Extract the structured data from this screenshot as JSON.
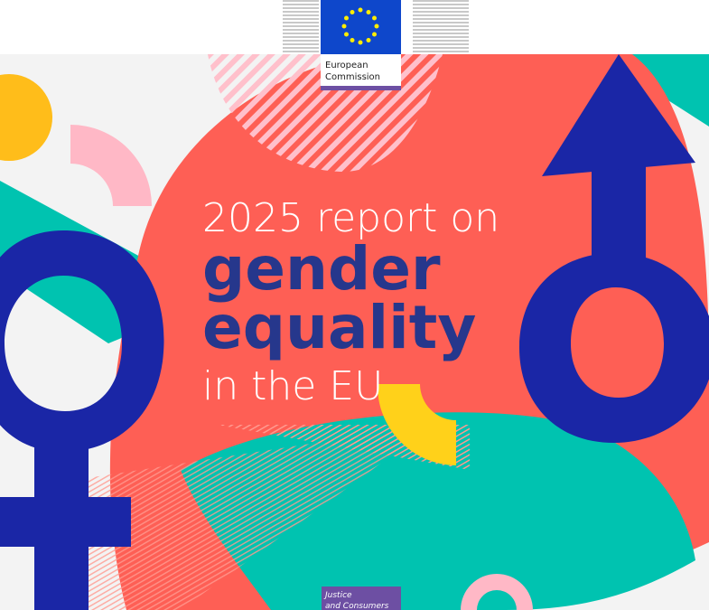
{
  "logo": {
    "lines": [
      "European",
      "Commission"
    ]
  },
  "title": {
    "intro": "2025 report on",
    "emphasis": [
      "gender",
      "equality"
    ],
    "outro": "in the EU"
  },
  "footer": {
    "lines": [
      "Justice",
      "and Consumers"
    ]
  }
}
